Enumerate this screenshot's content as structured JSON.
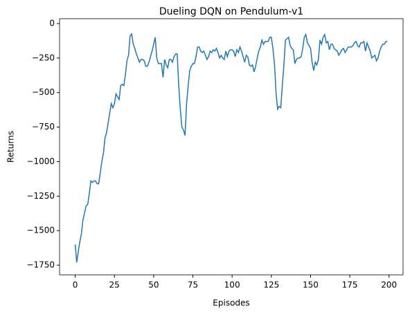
{
  "chart_data": {
    "type": "line",
    "title": "Dueling DQN on Pendulum-v1",
    "xlabel": "Episodes",
    "ylabel": "Returns",
    "x": [
      0,
      1,
      2,
      3,
      4,
      5,
      6,
      7,
      8,
      9,
      10,
      11,
      12,
      13,
      14,
      15,
      16,
      17,
      18,
      19,
      20,
      21,
      22,
      23,
      24,
      25,
      26,
      27,
      28,
      29,
      30,
      31,
      32,
      33,
      34,
      35,
      36,
      37,
      38,
      39,
      40,
      41,
      42,
      43,
      44,
      45,
      46,
      47,
      48,
      49,
      50,
      51,
      52,
      53,
      54,
      55,
      56,
      57,
      58,
      59,
      60,
      61,
      62,
      63,
      64,
      65,
      66,
      67,
      68,
      69,
      70,
      71,
      72,
      73,
      74,
      75,
      76,
      77,
      78,
      79,
      80,
      81,
      82,
      83,
      84,
      85,
      86,
      87,
      88,
      89,
      90,
      91,
      92,
      93,
      94,
      95,
      96,
      97,
      98,
      99,
      100,
      101,
      102,
      103,
      104,
      105,
      106,
      107,
      108,
      109,
      110,
      111,
      112,
      113,
      114,
      115,
      116,
      117,
      118,
      119,
      120,
      121,
      122,
      123,
      124,
      125,
      126,
      127,
      128,
      129,
      130,
      131,
      132,
      133,
      134,
      135,
      136,
      137,
      138,
      139,
      140,
      141,
      142,
      143,
      144,
      145,
      146,
      147,
      148,
      149,
      150,
      151,
      152,
      153,
      154,
      155,
      156,
      157,
      158,
      159,
      160,
      161,
      162,
      163,
      164,
      165,
      166,
      167,
      168,
      169,
      170,
      171,
      172,
      173,
      174,
      175,
      176,
      177,
      178,
      179,
      180,
      181,
      182,
      183,
      184,
      185,
      186,
      187,
      188,
      189,
      190,
      191,
      192,
      193,
      194,
      195,
      196,
      197,
      198,
      199
    ],
    "series": [
      {
        "name": "Returns",
        "color": "#1f77b4",
        "values": [
          -1600,
          -1730,
          -1650,
          -1580,
          -1520,
          -1420,
          -1370,
          -1320,
          -1310,
          -1230,
          -1140,
          -1150,
          -1140,
          -1140,
          -1160,
          -1160,
          -1080,
          -1000,
          -940,
          -830,
          -790,
          -720,
          -650,
          -580,
          -610,
          -580,
          -510,
          -530,
          -550,
          -450,
          -440,
          -450,
          -370,
          -270,
          -230,
          -90,
          -75,
          -150,
          -180,
          -220,
          -250,
          -280,
          -260,
          -260,
          -270,
          -310,
          -310,
          -280,
          -240,
          -200,
          -150,
          -100,
          -250,
          -290,
          -290,
          -290,
          -390,
          -260,
          -300,
          -320,
          -260,
          -260,
          -280,
          -240,
          -220,
          -220,
          -450,
          -620,
          -750,
          -770,
          -810,
          -580,
          -450,
          -340,
          -310,
          -290,
          -290,
          -240,
          -170,
          -170,
          -200,
          -210,
          -200,
          -230,
          -260,
          -240,
          -200,
          -210,
          -190,
          -200,
          -180,
          -210,
          -250,
          -230,
          -250,
          -260,
          -200,
          -240,
          -200,
          -190,
          -190,
          -200,
          -240,
          -190,
          -210,
          -170,
          -200,
          -240,
          -280,
          -230,
          -240,
          -300,
          -310,
          -300,
          -350,
          -310,
          -250,
          -200,
          -170,
          -120,
          -150,
          -130,
          -130,
          -130,
          -100,
          -100,
          -180,
          -290,
          -500,
          -620,
          -600,
          -610,
          -450,
          -300,
          -120,
          -110,
          -100,
          -160,
          -180,
          -190,
          -290,
          -260,
          -250,
          -250,
          -240,
          -180,
          -100,
          -80,
          -140,
          -160,
          -180,
          -280,
          -340,
          -280,
          -300,
          -260,
          -120,
          -150,
          -100,
          -80,
          -140,
          -130,
          -190,
          -150,
          -150,
          -180,
          -190,
          -200,
          -230,
          -210,
          -190,
          -180,
          -210,
          -190,
          -170,
          -170,
          -170,
          -160,
          -140,
          -130,
          -160,
          -170,
          -140,
          -140,
          -130,
          -200,
          -140,
          -170,
          -200,
          -250,
          -240,
          -230,
          -270,
          -250,
          -200,
          -170,
          -150,
          -150,
          -130,
          -130
        ]
      }
    ],
    "xlim": [
      -9.95,
      208.95
    ],
    "ylim": [
      -1820,
      35
    ],
    "xticks": [
      0,
      25,
      50,
      75,
      100,
      125,
      150,
      175,
      200
    ],
    "yticks": [
      0,
      {
        "value": -250,
        "label": "−250"
      },
      {
        "value": -500,
        "label": "−500"
      },
      {
        "value": -750,
        "label": "−750"
      },
      {
        "value": -1000,
        "label": "−1000"
      },
      {
        "value": -1250,
        "label": "−1250"
      },
      {
        "value": -1500,
        "label": "−1500"
      },
      {
        "value": -1750,
        "label": "−1750"
      }
    ]
  }
}
